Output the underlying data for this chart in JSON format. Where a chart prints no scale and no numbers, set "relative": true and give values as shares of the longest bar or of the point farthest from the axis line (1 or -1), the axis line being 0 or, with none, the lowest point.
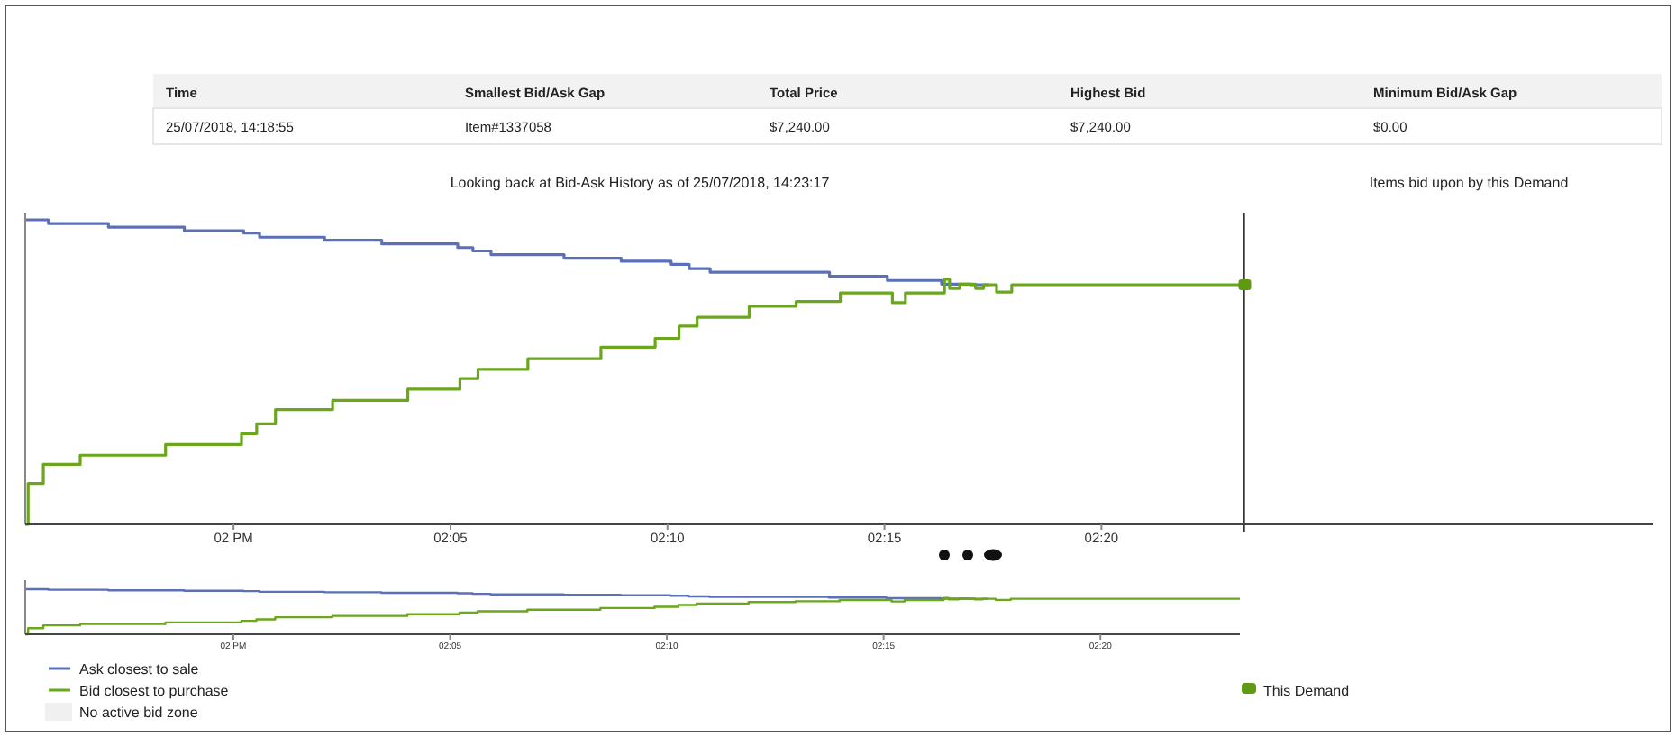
{
  "chart_data": [
    {
      "type": "step",
      "title": "Looking back at Bid-Ask History as of 25/07/2018, 14:23:17",
      "relative": true,
      "annotations": [
        "Time",
        "Smallest Bid/Ask Gap",
        "Total Price",
        "Highest Bid",
        "Minimum Bid/Ask Gap",
        "25/07/2018, 14:18:55",
        "Item#1337058",
        "$7,240.00",
        "$7,240.00",
        "$0.00",
        "Items bid upon by this Demand",
        "No active bid zone"
      ],
      "xlim": [
        "2018-07-25T13:55:12",
        "2018-07-25T14:32:42"
      ],
      "xticks": [
        {
          "value": "2018-07-25T14:00",
          "label": "02 PM"
        },
        {
          "value": "2018-07-25T14:05",
          "label": "02:05"
        },
        {
          "value": "2018-07-25T14:10",
          "label": "02:10"
        },
        {
          "value": "2018-07-25T14:15",
          "label": "02:15"
        },
        {
          "value": "2018-07-25T14:20",
          "label": "02:20"
        }
      ],
      "ref_lines": [
        {
          "axis": "x",
          "value": "2018-07-25T14:23:17",
          "label": null,
          "color": "#333333"
        }
      ],
      "legend": "bottom",
      "grid": false,
      "line_style": "solid",
      "series": [
        {
          "name": "Ask closest to sale",
          "color": "#5b70b8",
          "x": [
            "2018-07-25T13:55:12",
            "2018-07-25T13:55:44",
            "2018-07-25T13:57:07",
            "2018-07-25T13:58:52",
            "2018-07-25T14:00:14",
            "2018-07-25T14:00:36",
            "2018-07-25T14:02:06",
            "2018-07-25T14:03:25",
            "2018-07-25T14:05:10",
            "2018-07-25T14:05:31",
            "2018-07-25T14:05:56",
            "2018-07-25T14:07:37",
            "2018-07-25T14:08:56",
            "2018-07-25T14:10:05",
            "2018-07-25T14:10:30",
            "2018-07-25T14:10:59",
            "2018-07-25T14:13:44",
            "2018-07-25T14:15:04",
            "2018-07-25T14:16:19",
            "2018-07-25T14:16:59",
            "2018-07-25T14:17:24"
          ],
          "values": [
            1,
            0.988,
            0.976,
            0.964,
            0.957,
            0.943,
            0.933,
            0.921,
            0.909,
            0.898,
            0.886,
            0.874,
            0.864,
            0.854,
            0.84,
            0.828,
            0.815,
            0.801,
            0.789,
            0.787,
            0.787
          ]
        },
        {
          "name": "Bid closest to purchase",
          "color": "#6aa71c",
          "x": [
            "2018-07-25T13:55:12",
            "2018-07-25T13:55:16",
            "2018-07-25T13:55:37",
            "2018-07-25T13:56:28",
            "2018-07-25T13:58:26",
            "2018-07-25T14:00:11",
            "2018-07-25T14:00:32",
            "2018-07-25T14:00:58",
            "2018-07-25T14:02:17",
            "2018-07-25T14:04:01",
            "2018-07-25T14:05:13",
            "2018-07-25T14:05:38",
            "2018-07-25T14:06:47",
            "2018-07-25T14:08:28",
            "2018-07-25T14:09:43",
            "2018-07-25T14:10:16",
            "2018-07-25T14:10:41",
            "2018-07-25T14:11:53",
            "2018-07-25T14:12:58",
            "2018-07-25T14:13:59",
            "2018-07-25T14:15:11",
            "2018-07-25T14:15:29",
            "2018-07-25T14:16:23",
            "2018-07-25T14:16:30",
            "2018-07-25T14:16:44",
            "2018-07-25T14:17:06",
            "2018-07-25T14:17:17",
            "2018-07-25T14:17:35",
            "2018-07-25T14:17:56",
            "2018-07-25T14:23:13"
          ],
          "values": [
            0,
            0.134,
            0.197,
            0.227,
            0.262,
            0.298,
            0.33,
            0.377,
            0.407,
            0.444,
            0.479,
            0.509,
            0.544,
            0.582,
            0.611,
            0.651,
            0.68,
            0.716,
            0.732,
            0.76,
            0.728,
            0.76,
            0.805,
            0.775,
            0.789,
            0.775,
            0.787,
            0.763,
            0.787,
            0.787
          ]
        },
        {
          "name": "This Demand",
          "type": "scatter",
          "marker": "square",
          "color": "#5e9a12",
          "x": [
            "2018-07-25T14:23:17"
          ],
          "values": [
            0.787
          ]
        }
      ]
    },
    {
      "type": "step",
      "relative": true,
      "tick_labels": "x",
      "xlim": [
        "2018-07-25T13:55:12",
        "2018-07-25T14:23:13"
      ],
      "xticks": [
        {
          "value": "2018-07-25T14:00",
          "label": "02 PM"
        },
        {
          "value": "2018-07-25T14:05",
          "label": "02:05"
        },
        {
          "value": "2018-07-25T14:10",
          "label": "02:10"
        },
        {
          "value": "2018-07-25T14:15",
          "label": "02:15"
        },
        {
          "value": "2018-07-25T14:20",
          "label": "02:20"
        }
      ],
      "series": [
        {
          "color": "#5b70b8",
          "x": [
            "2018-07-25T13:55:12",
            "2018-07-25T13:55:44",
            "2018-07-25T13:57:07",
            "2018-07-25T13:58:52",
            "2018-07-25T14:00:14",
            "2018-07-25T14:00:36",
            "2018-07-25T14:02:06",
            "2018-07-25T14:03:25",
            "2018-07-25T14:05:10",
            "2018-07-25T14:05:31",
            "2018-07-25T14:05:56",
            "2018-07-25T14:07:37",
            "2018-07-25T14:08:56",
            "2018-07-25T14:10:05",
            "2018-07-25T14:10:30",
            "2018-07-25T14:10:59",
            "2018-07-25T14:13:44",
            "2018-07-25T14:15:04",
            "2018-07-25T14:16:19",
            "2018-07-25T14:16:59",
            "2018-07-25T14:17:24"
          ],
          "values": [
            1,
            0.988,
            0.976,
            0.964,
            0.957,
            0.943,
            0.933,
            0.921,
            0.909,
            0.898,
            0.886,
            0.874,
            0.864,
            0.854,
            0.84,
            0.828,
            0.815,
            0.801,
            0.789,
            0.787,
            0.787
          ]
        },
        {
          "color": "#6aa71c",
          "x": [
            "2018-07-25T13:55:12",
            "2018-07-25T13:55:16",
            "2018-07-25T13:55:37",
            "2018-07-25T13:56:28",
            "2018-07-25T13:58:26",
            "2018-07-25T14:00:11",
            "2018-07-25T14:00:32",
            "2018-07-25T14:00:58",
            "2018-07-25T14:02:17",
            "2018-07-25T14:04:01",
            "2018-07-25T14:05:13",
            "2018-07-25T14:05:38",
            "2018-07-25T14:06:47",
            "2018-07-25T14:08:28",
            "2018-07-25T14:09:43",
            "2018-07-25T14:10:16",
            "2018-07-25T14:10:41",
            "2018-07-25T14:11:53",
            "2018-07-25T14:12:58",
            "2018-07-25T14:13:59",
            "2018-07-25T14:15:11",
            "2018-07-25T14:15:29",
            "2018-07-25T14:16:23",
            "2018-07-25T14:16:30",
            "2018-07-25T14:16:44",
            "2018-07-25T14:17:06",
            "2018-07-25T14:17:17",
            "2018-07-25T14:17:35",
            "2018-07-25T14:17:56",
            "2018-07-25T14:23:13"
          ],
          "values": [
            0,
            0.134,
            0.197,
            0.227,
            0.262,
            0.298,
            0.33,
            0.377,
            0.407,
            0.444,
            0.479,
            0.509,
            0.544,
            0.582,
            0.611,
            0.651,
            0.68,
            0.716,
            0.732,
            0.76,
            0.728,
            0.76,
            0.805,
            0.775,
            0.789,
            0.775,
            0.787,
            0.763,
            0.787,
            0.787
          ]
        }
      ]
    }
  ]
}
